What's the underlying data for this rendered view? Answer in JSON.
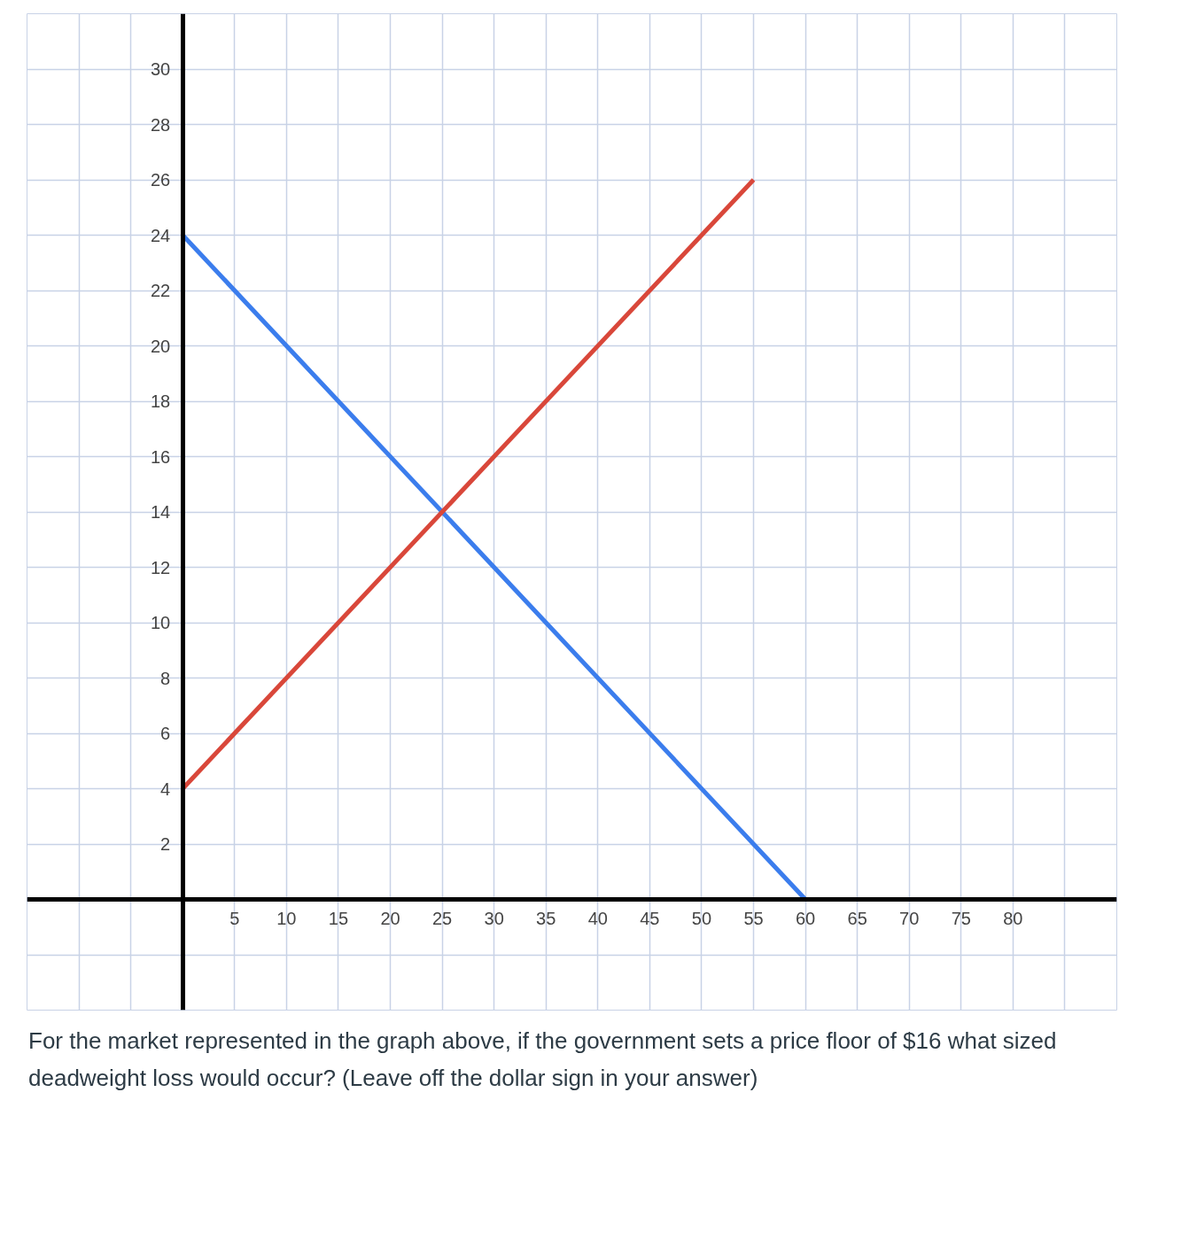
{
  "chart_data": {
    "type": "line",
    "series": [
      {
        "color": "#3b7ded",
        "x": [
          0,
          60
        ],
        "values": [
          24,
          0
        ]
      },
      {
        "color": "#d9473a",
        "x": [
          0,
          55
        ],
        "values": [
          4,
          26
        ]
      }
    ],
    "xlim": [
      -15,
      90
    ],
    "ylim": [
      -4,
      32
    ],
    "xticks": [
      5,
      10,
      15,
      20,
      25,
      30,
      35,
      40,
      45,
      50,
      55,
      60,
      65,
      70,
      75,
      80
    ],
    "yticks": [
      2,
      4,
      6,
      8,
      10,
      12,
      14,
      16,
      18,
      20,
      22,
      24,
      26,
      28,
      30
    ],
    "grid": true,
    "marker": "none",
    "line_style": "solid",
    "annotations": [
      "For the market represented in the graph above, if the government sets a price floor of $16 what sized deadweight loss would occur? (Leave off the dollar sign in your answer)"
    ]
  }
}
